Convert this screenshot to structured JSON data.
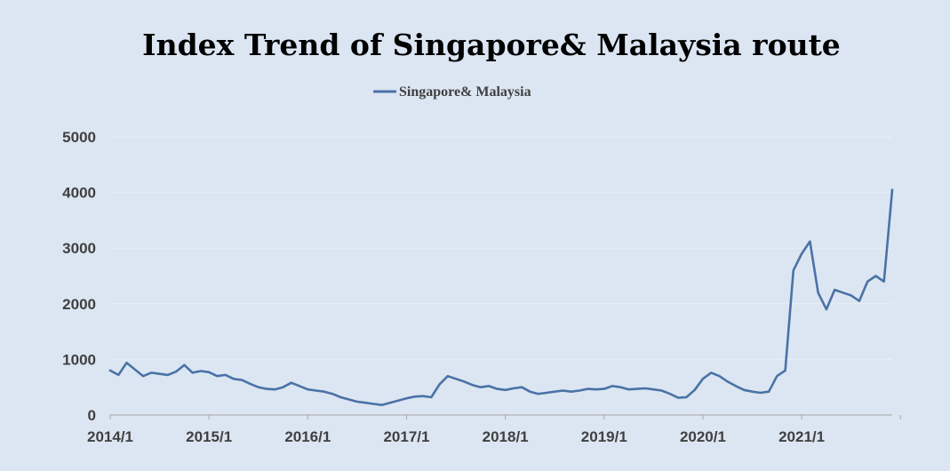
{
  "chart_data": {
    "type": "line",
    "title": "Index Trend of Singapore& Malaysia route",
    "xlabel": "",
    "ylabel": "",
    "ylim": [
      0,
      5000
    ],
    "xlim": [
      "2014-01",
      "2021-12"
    ],
    "y_ticks": [
      0,
      1000,
      2000,
      3000,
      4000,
      5000
    ],
    "x_tick_labels": [
      "2014/1",
      "2015/1",
      "2016/1",
      "2017/1",
      "2018/1",
      "2019/1",
      "2020/1",
      "2021/1"
    ],
    "grid": "horizontal",
    "legend_position": "top-center",
    "series": [
      {
        "name": "Singapore& Malaysia",
        "color": "#4a72a6",
        "x": [
          "2014-01",
          "2014-02",
          "2014-03",
          "2014-04",
          "2014-05",
          "2014-06",
          "2014-07",
          "2014-08",
          "2014-09",
          "2014-10",
          "2014-11",
          "2014-12",
          "2015-01",
          "2015-02",
          "2015-03",
          "2015-04",
          "2015-05",
          "2015-06",
          "2015-07",
          "2015-08",
          "2015-09",
          "2015-10",
          "2015-11",
          "2015-12",
          "2016-01",
          "2016-02",
          "2016-03",
          "2016-04",
          "2016-05",
          "2016-06",
          "2016-07",
          "2016-08",
          "2016-09",
          "2016-10",
          "2016-11",
          "2016-12",
          "2017-01",
          "2017-02",
          "2017-03",
          "2017-04",
          "2017-05",
          "2017-06",
          "2017-07",
          "2017-08",
          "2017-09",
          "2017-10",
          "2017-11",
          "2017-12",
          "2018-01",
          "2018-02",
          "2018-03",
          "2018-04",
          "2018-05",
          "2018-06",
          "2018-07",
          "2018-08",
          "2018-09",
          "2018-10",
          "2018-11",
          "2018-12",
          "2019-01",
          "2019-02",
          "2019-03",
          "2019-04",
          "2019-05",
          "2019-06",
          "2019-07",
          "2019-08",
          "2019-09",
          "2019-10",
          "2019-11",
          "2019-12",
          "2020-01",
          "2020-02",
          "2020-03",
          "2020-04",
          "2020-05",
          "2020-06",
          "2020-07",
          "2020-08",
          "2020-09",
          "2020-10",
          "2020-11",
          "2020-12",
          "2021-01",
          "2021-02",
          "2021-03",
          "2021-04",
          "2021-05",
          "2021-06",
          "2021-07",
          "2021-08",
          "2021-09",
          "2021-10",
          "2021-11",
          "2021-12"
        ],
        "values": [
          800,
          720,
          940,
          820,
          700,
          760,
          740,
          720,
          780,
          900,
          760,
          790,
          770,
          700,
          720,
          650,
          630,
          560,
          500,
          470,
          460,
          500,
          580,
          520,
          460,
          440,
          420,
          380,
          320,
          280,
          240,
          220,
          200,
          180,
          220,
          260,
          300,
          330,
          340,
          320,
          550,
          700,
          650,
          600,
          540,
          500,
          520,
          470,
          450,
          480,
          500,
          420,
          380,
          400,
          420,
          440,
          420,
          440,
          470,
          460,
          470,
          520,
          500,
          460,
          470,
          480,
          460,
          440,
          380,
          310,
          320,
          450,
          650,
          760,
          700,
          600,
          520,
          450,
          420,
          400,
          420,
          700,
          800,
          2600,
          2900,
          3120,
          2200,
          1900,
          2250,
          2200,
          2150,
          2050,
          2400,
          2500,
          2400,
          4050
        ]
      }
    ]
  }
}
